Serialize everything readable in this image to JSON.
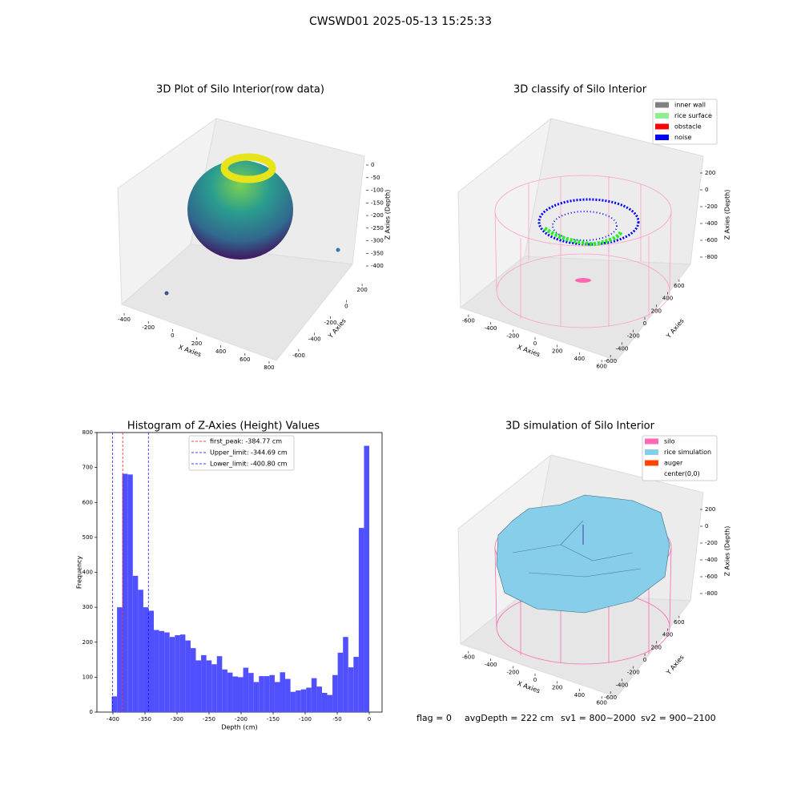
{
  "title": "CWSWD01 2025-05-13 15:25:33",
  "footer": [
    "flag = 0",
    "avgDepth = 222 cm",
    "sv1 = 800~2000",
    "sv2 = 900~2100"
  ],
  "chart_data": [
    {
      "type": "scatter3d",
      "title": "3D Plot of Silo Interior(row data)",
      "xlabel": "X Axies",
      "ylabel": "Y Axies",
      "zlabel": "Z Axies (Depth)",
      "xlim": [
        -450,
        850
      ],
      "xticks": [
        -400,
        -200,
        0,
        200,
        400,
        600,
        800
      ],
      "ylim": [
        -700,
        300
      ],
      "yticks": [
        -600,
        -400,
        -200,
        0,
        200
      ],
      "zlim": [
        -420,
        10
      ],
      "zticks": [
        -400,
        -350,
        -300,
        -250,
        -200,
        -150,
        -100,
        -50,
        0
      ]
    },
    {
      "type": "scatter3d",
      "title": "3D classify of Silo Interior",
      "xlabel": "X Axies",
      "ylabel": "Y Axies",
      "zlabel": "Z Axies (Depth)",
      "xlim": [
        -700,
        700
      ],
      "xticks": [
        -600,
        -400,
        -200,
        0,
        200,
        400,
        600
      ],
      "ylim": [
        -700,
        700
      ],
      "yticks": [
        -600,
        -400,
        -200,
        0,
        200,
        400,
        600
      ],
      "zlim": [
        -900,
        300
      ],
      "zticks": [
        -800,
        -600,
        -400,
        -200,
        0,
        200
      ],
      "legend": [
        {
          "name": "inner wall",
          "color": "#808080"
        },
        {
          "name": "rice surface",
          "color": "#90ee90"
        },
        {
          "name": "obstacle",
          "color": "#ff0000"
        },
        {
          "name": "noise",
          "color": "#0000ff"
        }
      ]
    },
    {
      "type": "histogram",
      "title": "Histogram of Z-Axies (Height) Values",
      "xlabel": "Depth (cm)",
      "ylabel": "Frequency",
      "color": "#5050ff",
      "bins": [
        -401.8,
        -393.6,
        -385.4,
        -377.2,
        -369,
        -360.8,
        -352.6,
        -344.4,
        -336.2,
        -328,
        -319.8,
        -311.6,
        -303.4,
        -295.2,
        -287,
        -278.8,
        -270.6,
        -262.4,
        -254.2,
        -246,
        -237.8,
        -229.6,
        -221.4,
        -213.2,
        -205,
        -196.8,
        -188.6,
        -180.4,
        -172.2,
        -164,
        -155.8,
        -147.6,
        -139.4,
        -131.2,
        -123,
        -114.8,
        -106.6,
        -98.4,
        -90.2,
        -82,
        -73.8,
        -65.6,
        -57.4,
        -49.2,
        -41,
        -32.8,
        -24.6,
        -16.4,
        -8.2,
        0
      ],
      "values": [
        45,
        300,
        682,
        680,
        390,
        350,
        300,
        290,
        235,
        232,
        228,
        215,
        220,
        222,
        205,
        183,
        148,
        163,
        148,
        137,
        160,
        122,
        113,
        102,
        100,
        127,
        112,
        86,
        103,
        103,
        106,
        86,
        114,
        95,
        58,
        62,
        65,
        70,
        97,
        73,
        55,
        49,
        106,
        170,
        215,
        128,
        158,
        527,
        762
      ],
      "xlim": [
        -425,
        20
      ],
      "xticks": [
        -400,
        -350,
        -300,
        -250,
        -200,
        -150,
        -100,
        -50,
        0
      ],
      "ylim": [
        0,
        800
      ],
      "yticks": [
        0,
        100,
        200,
        300,
        400,
        500,
        600,
        700,
        800
      ],
      "vlines": [
        {
          "name": "first_peak: -384.77 cm",
          "value": -384.77,
          "color": "#ff0000"
        },
        {
          "name": "Upper_limit: -344.69 cm",
          "value": -344.69,
          "color": "#0000ff"
        },
        {
          "name": "Lower_limit: -400.80 cm",
          "value": -400.8,
          "color": "#0000ff"
        }
      ]
    },
    {
      "type": "surface3d",
      "title": "3D simulation of Silo Interior",
      "xlabel": "X Axies",
      "ylabel": "Y Axies",
      "zlabel": "Z Axies (Depth)",
      "xlim": [
        -700,
        700
      ],
      "xticks": [
        -600,
        -400,
        -200,
        0,
        200,
        400,
        600
      ],
      "ylim": [
        -700,
        700
      ],
      "yticks": [
        -600,
        -400,
        -200,
        0,
        200,
        400,
        600
      ],
      "zlim": [
        -900,
        300
      ],
      "zticks": [
        -800,
        -600,
        -400,
        -200,
        0,
        200
      ],
      "legend": [
        {
          "name": "silo",
          "color": "#ff69b4"
        },
        {
          "name": "rice simulation",
          "color": "#87ceeb"
        },
        {
          "name": "auger",
          "color": "#ff4500"
        },
        {
          "name": "center(0,0)",
          "color": "#ffffff"
        }
      ]
    }
  ]
}
